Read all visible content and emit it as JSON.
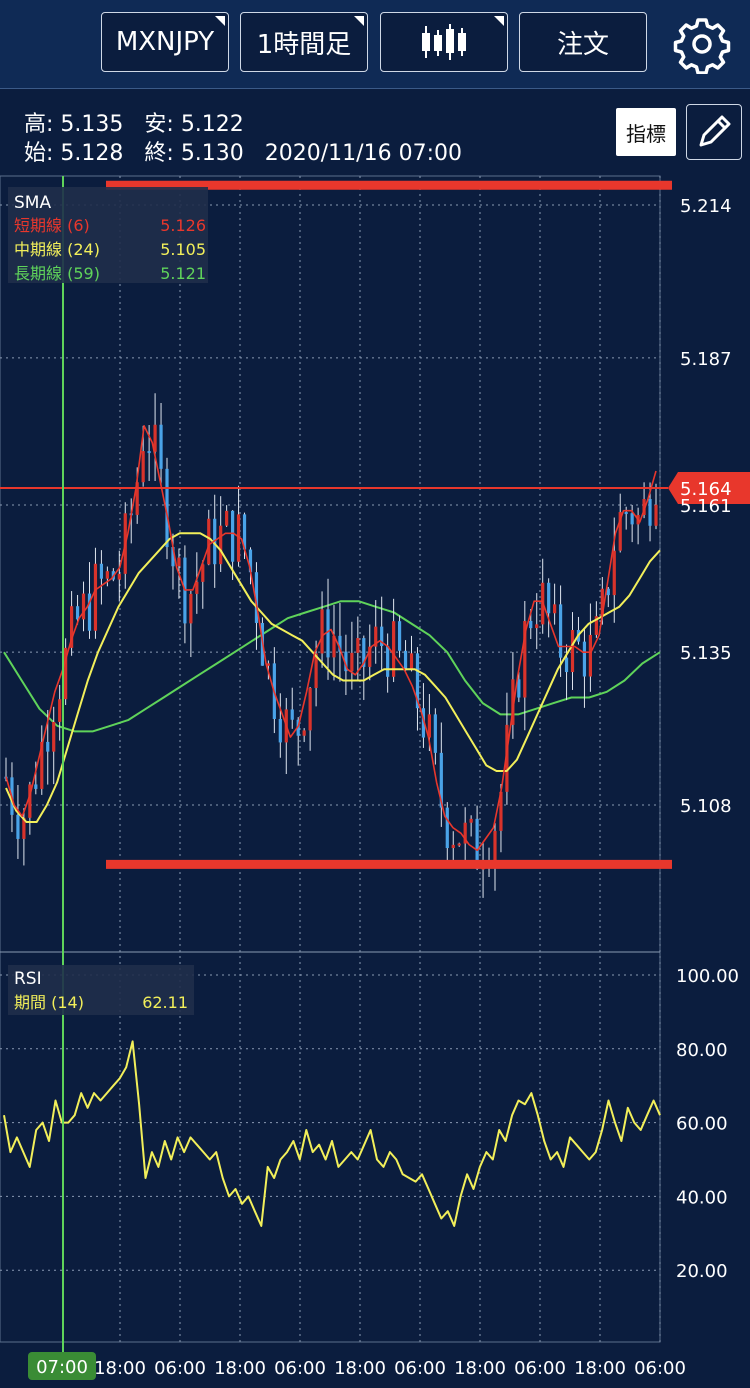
{
  "toolbar": {
    "symbol": "MXNJPY",
    "timeframe": "1時間足",
    "order_label": "注文",
    "chart_type_icon": "candlestick-icon",
    "settings_icon": "gear-icon"
  },
  "ohlc": {
    "high_label": "高:",
    "high": "5.135",
    "low_label": "安:",
    "low": "5.122",
    "open_label": "始:",
    "open": "5.128",
    "close_label": "終:",
    "close": "5.130",
    "datetime": "2020/11/16 07:00"
  },
  "buttons": {
    "indicator": "指標",
    "draw_icon": "pencil-icon"
  },
  "colors": {
    "bg": "#0b1d3e",
    "short": "#e8372c",
    "mid": "#f2ef5a",
    "long": "#5fd35a",
    "up": "#d9332b",
    "down": "#4aa3e8",
    "rsi": "#f2ef5a",
    "cursor": "#5fd35a"
  },
  "chart_data": [
    {
      "type": "candlestick",
      "title": "SMA",
      "legend": [
        {
          "name": "短期線 (6)",
          "value": "5.126"
        },
        {
          "name": "中期線 (24)",
          "value": "5.105"
        },
        {
          "name": "長期線 (59)",
          "value": "5.121"
        }
      ],
      "y_ticks": [
        "5.214",
        "5.187",
        "5.161",
        "5.135",
        "5.108"
      ],
      "ylim": [
        5.094,
        5.222
      ],
      "current_price": "5.164",
      "current_price_value": 5.164,
      "x_ticks": [
        "07:00",
        "18:00",
        "06:00",
        "18:00",
        "06:00",
        "18:00",
        "06:00",
        "18:00",
        "06:00",
        "18:00",
        "06:00"
      ],
      "resistance": 5.2175,
      "support": 5.0975,
      "series_short": [
        5.113,
        5.108,
        5.106,
        5.11,
        5.116,
        5.122,
        5.128,
        5.132,
        5.137,
        5.141,
        5.143,
        5.146,
        5.147,
        5.148,
        5.15,
        5.156,
        5.164,
        5.175,
        5.172,
        5.165,
        5.158,
        5.15,
        5.146,
        5.146,
        5.15,
        5.154,
        5.155,
        5.156,
        5.156,
        5.155,
        5.15,
        5.142,
        5.133,
        5.128,
        5.124,
        5.12,
        5.122,
        5.128,
        5.135,
        5.138,
        5.139,
        5.136,
        5.132,
        5.131,
        5.133,
        5.136,
        5.137,
        5.136,
        5.134,
        5.132,
        5.129,
        5.125,
        5.12,
        5.112,
        5.106,
        5.104,
        5.103,
        5.101,
        5.1,
        5.102,
        5.104,
        5.111,
        5.121,
        5.131,
        5.139,
        5.144,
        5.144,
        5.14,
        5.136,
        5.136,
        5.136,
        5.135,
        5.135,
        5.138,
        5.147,
        5.156,
        5.16,
        5.16,
        5.158,
        5.162,
        5.167
      ],
      "series_mid": [
        5.111,
        5.107,
        5.105,
        5.105,
        5.108,
        5.112,
        5.118,
        5.124,
        5.13,
        5.135,
        5.139,
        5.143,
        5.146,
        5.149,
        5.151,
        5.153,
        5.155,
        5.156,
        5.156,
        5.156,
        5.155,
        5.153,
        5.15,
        5.147,
        5.144,
        5.142,
        5.14,
        5.139,
        5.138,
        5.137,
        5.135,
        5.133,
        5.131,
        5.13,
        5.13,
        5.13,
        5.131,
        5.132,
        5.132,
        5.132,
        5.132,
        5.131,
        5.129,
        5.127,
        5.124,
        5.121,
        5.118,
        5.115,
        5.114,
        5.114,
        5.116,
        5.12,
        5.124,
        5.128,
        5.132,
        5.135,
        5.138,
        5.14,
        5.141,
        5.142,
        5.143,
        5.145,
        5.148,
        5.151,
        5.153
      ],
      "series_long": [
        5.135,
        5.13,
        5.125,
        5.122,
        5.121,
        5.121,
        5.122,
        5.123,
        5.125,
        5.127,
        5.129,
        5.131,
        5.133,
        5.135,
        5.137,
        5.139,
        5.141,
        5.142,
        5.143,
        5.144,
        5.144,
        5.143,
        5.142,
        5.14,
        5.138,
        5.135,
        5.13,
        5.126,
        5.124,
        5.124,
        5.125,
        5.126,
        5.127,
        5.127,
        5.128,
        5.13,
        5.133,
        5.135
      ]
    },
    {
      "type": "line",
      "title": "RSI",
      "legend": [
        {
          "name": "期間 (14)",
          "value": "62.11"
        }
      ],
      "y_ticks": [
        "100.00",
        "80.00",
        "60.00",
        "40.00",
        "20.00"
      ],
      "ylim": [
        0,
        100
      ],
      "values": [
        62,
        52,
        56,
        52,
        48,
        58,
        60,
        55,
        66,
        60,
        60,
        62,
        68,
        64,
        68,
        66,
        68,
        70,
        72,
        75,
        82,
        65,
        45,
        52,
        48,
        55,
        50,
        56,
        52,
        56,
        54,
        52,
        50,
        52,
        45,
        40,
        42,
        38,
        40,
        36,
        32,
        48,
        45,
        50,
        52,
        55,
        50,
        58,
        52,
        54,
        50,
        55,
        48,
        50,
        52,
        50,
        54,
        58,
        50,
        48,
        52,
        50,
        46,
        45,
        44,
        46,
        42,
        38,
        34,
        36,
        32,
        40,
        46,
        42,
        48,
        52,
        50,
        58,
        55,
        62,
        66,
        65,
        68,
        62,
        55,
        50,
        52,
        48,
        56,
        54,
        52,
        50,
        52,
        58,
        66,
        60,
        55,
        64,
        60,
        58,
        62,
        66,
        62
      ]
    }
  ]
}
